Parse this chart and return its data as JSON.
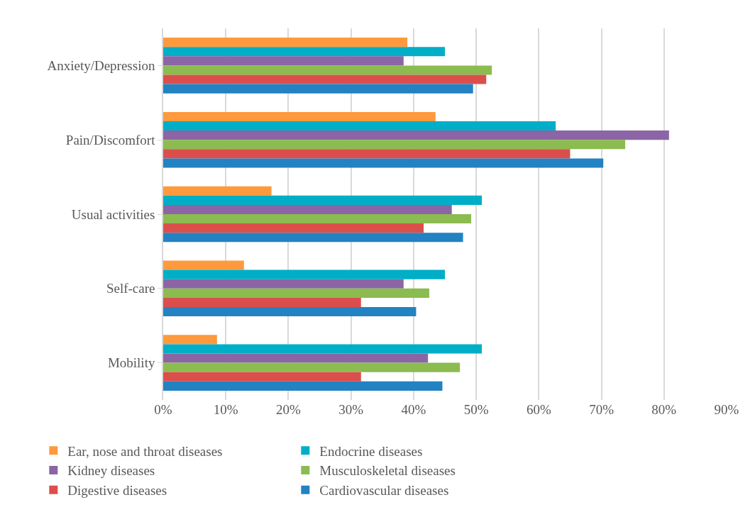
{
  "chart_data": {
    "type": "bar",
    "orientation": "horizontal",
    "categories": [
      "Anxiety/Depression",
      "Pain/Discomfort",
      "Usual activities",
      "Self-care",
      "Mobility"
    ],
    "series": [
      {
        "name": "Ear, nose and throat diseases",
        "color": "#fe9a3d",
        "values": [
          39.0,
          43.5,
          17.3,
          12.9,
          8.6
        ]
      },
      {
        "name": "Endocrine diseases",
        "color": "#00aec7",
        "values": [
          45.0,
          62.7,
          50.9,
          45.0,
          50.9
        ]
      },
      {
        "name": "Kidney diseases",
        "color": "#8b65a5",
        "values": [
          38.4,
          80.8,
          46.1,
          38.4,
          42.3
        ]
      },
      {
        "name": "Musculoskeletal diseases",
        "color": "#8cbb50",
        "values": [
          52.5,
          73.8,
          49.2,
          42.5,
          47.4
        ]
      },
      {
        "name": "Digestive diseases",
        "color": "#dc4e4c",
        "values": [
          51.6,
          65.0,
          41.6,
          31.6,
          31.6
        ]
      },
      {
        "name": "Cardiovascular diseases",
        "color": "#2282c2",
        "values": [
          49.5,
          70.3,
          47.9,
          40.4,
          44.6
        ]
      }
    ],
    "xlim": [
      0,
      90
    ],
    "xticks": [
      {
        "value": 0,
        "label": "0%"
      },
      {
        "value": 10,
        "label": "10%"
      },
      {
        "value": 20,
        "label": "20%"
      },
      {
        "value": 30,
        "label": "30%"
      },
      {
        "value": 40,
        "label": "40%"
      },
      {
        "value": 50,
        "label": "50%"
      },
      {
        "value": 60,
        "label": "60%"
      },
      {
        "value": 70,
        "label": "70%"
      },
      {
        "value": 80,
        "label": "80%"
      },
      {
        "value": 90,
        "label": "90%"
      }
    ],
    "grid": "x",
    "legend": "bottom"
  }
}
